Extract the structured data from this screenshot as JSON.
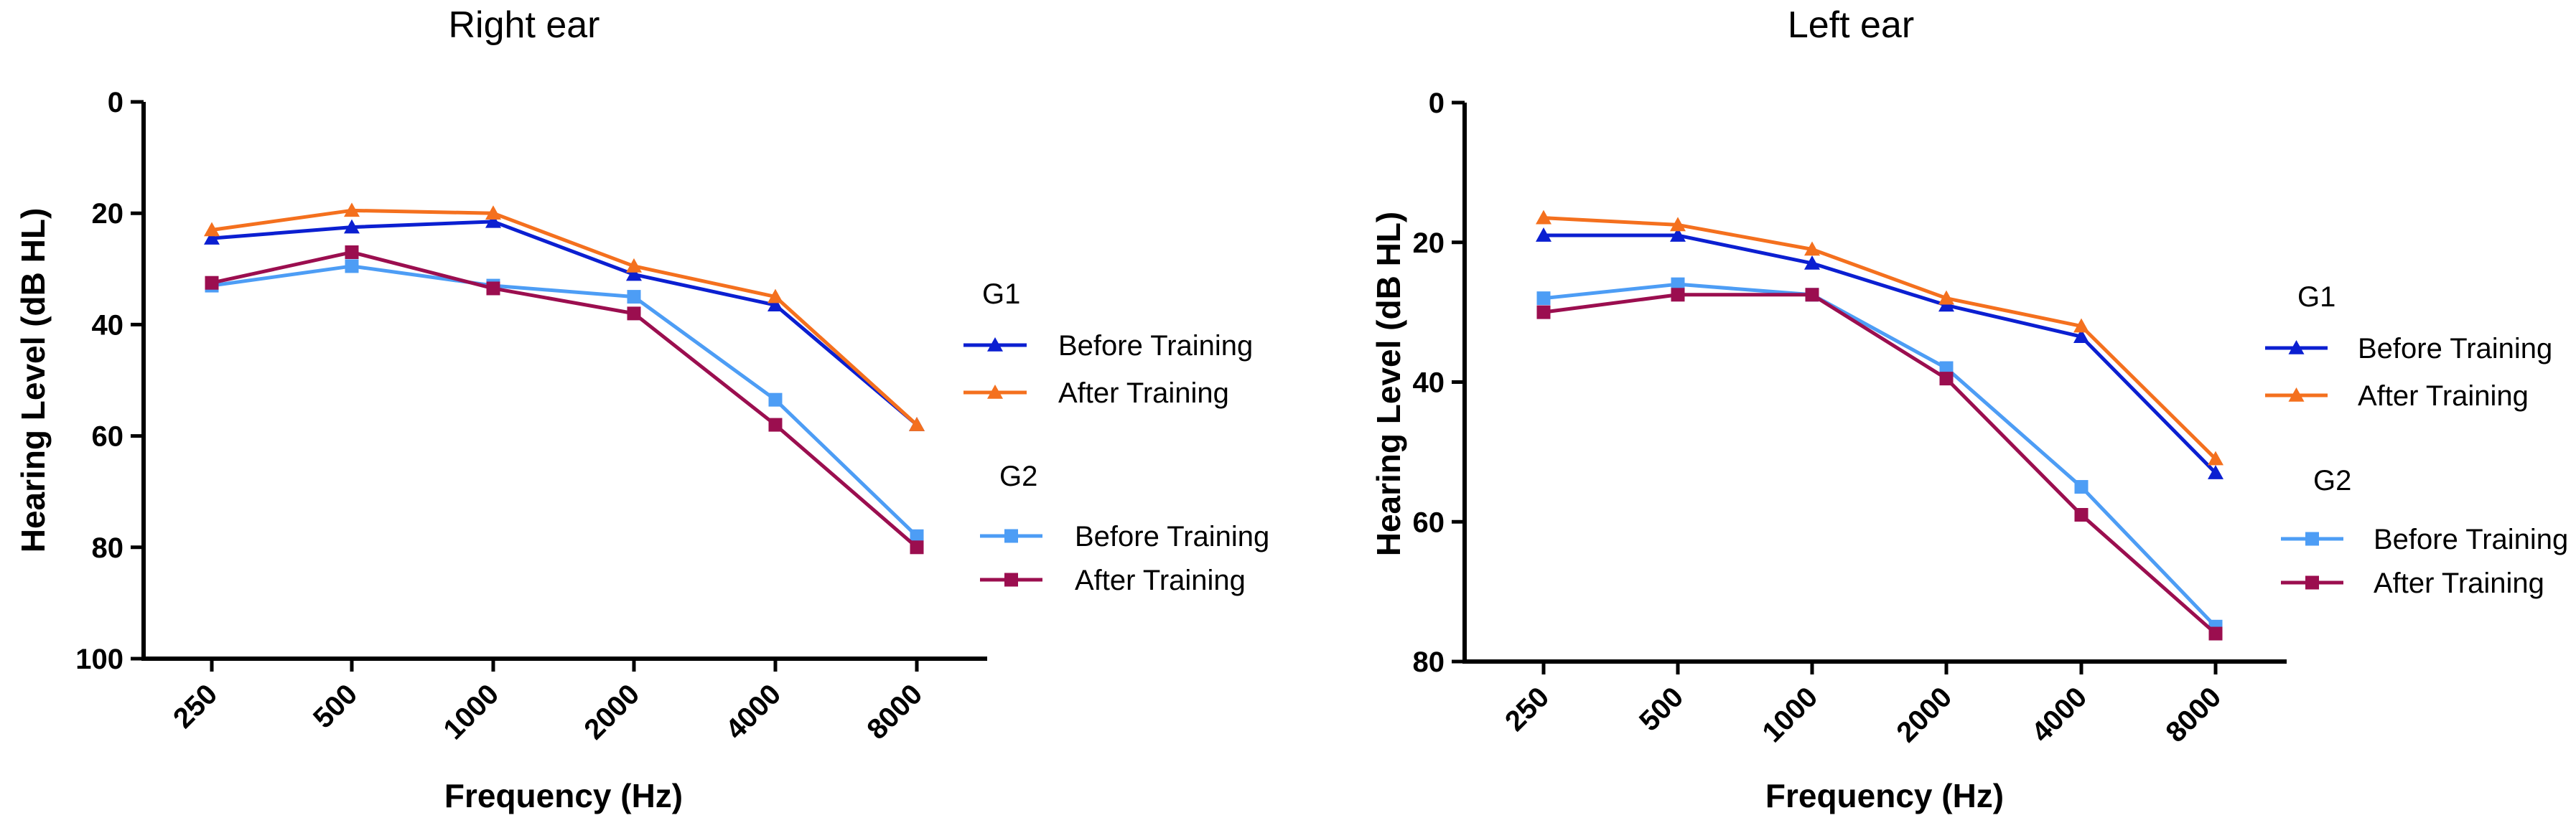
{
  "chart_data": [
    {
      "type": "line",
      "title": "Right ear",
      "xlabel": "Frequency (Hz)",
      "ylabel": "Hearing Level (dB HL)",
      "categories": [
        "250",
        "500",
        "1000",
        "2000",
        "4000",
        "8000"
      ],
      "ylim": [
        0,
        100
      ],
      "y_inverted": true,
      "yticks": [
        0,
        20,
        40,
        60,
        80,
        100
      ],
      "legend_position": "right",
      "legend_groups": [
        {
          "label": "G1",
          "series": [
            0,
            1
          ]
        },
        {
          "label": "G2",
          "series": [
            2,
            3
          ]
        }
      ],
      "series": [
        {
          "name": "Before Training",
          "group": "G1",
          "marker": "triangle",
          "color": "#0b1fd1",
          "values": [
            24.5,
            22.5,
            21.5,
            31,
            36.5,
            58
          ]
        },
        {
          "name": "After Training",
          "group": "G1",
          "marker": "triangle",
          "color": "#f4701e",
          "values": [
            23,
            19.5,
            20,
            29.5,
            35,
            58
          ]
        },
        {
          "name": "Before Training",
          "group": "G2",
          "marker": "square",
          "color": "#4d9df5",
          "values": [
            33,
            29.5,
            33,
            35,
            53.5,
            78
          ]
        },
        {
          "name": "After Training",
          "group": "G2",
          "marker": "square",
          "color": "#9b0e4f",
          "values": [
            32.5,
            27,
            33.5,
            38,
            58,
            80
          ]
        }
      ]
    },
    {
      "type": "line",
      "title": "Left ear",
      "xlabel": "Frequency (Hz)",
      "ylabel": "Hearing Level (dB HL)",
      "categories": [
        "250",
        "500",
        "1000",
        "2000",
        "4000",
        "8000"
      ],
      "ylim": [
        0,
        80
      ],
      "y_inverted": true,
      "yticks": [
        0,
        20,
        40,
        60,
        80
      ],
      "legend_position": "right",
      "legend_groups": [
        {
          "label": "G1",
          "series": [
            0,
            1
          ]
        },
        {
          "label": "G2",
          "series": [
            2,
            3
          ]
        }
      ],
      "series": [
        {
          "name": "Before Training",
          "group": "G1",
          "marker": "triangle",
          "color": "#0b1fd1",
          "values": [
            19,
            19,
            23,
            29,
            33.5,
            53
          ]
        },
        {
          "name": "After Training",
          "group": "G1",
          "marker": "triangle",
          "color": "#f4701e",
          "values": [
            16.5,
            17.5,
            21,
            28,
            32,
            51
          ]
        },
        {
          "name": "Before Training",
          "group": "G2",
          "marker": "square",
          "color": "#4d9df5",
          "values": [
            28,
            26,
            27.5,
            38,
            55,
            75
          ]
        },
        {
          "name": "After Training",
          "group": "G2",
          "marker": "square",
          "color": "#9b0e4f",
          "values": [
            30,
            27.5,
            27.5,
            39.5,
            59,
            76
          ]
        }
      ]
    }
  ]
}
